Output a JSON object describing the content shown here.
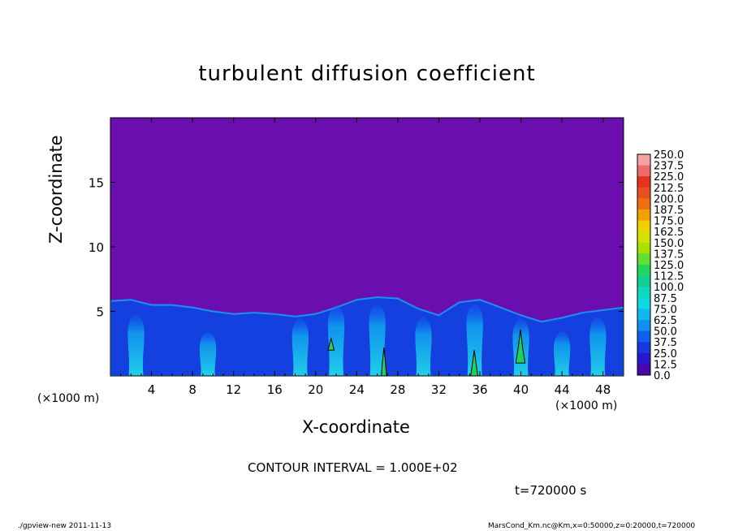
{
  "figure": {
    "title": "turbulent diffusion coefficient",
    "xlabel": "X-coordinate",
    "ylabel": "Z-coordinate",
    "x_unit_left": "(×1000 m)",
    "x_unit_right": "(×1000 m)",
    "contour_interval": "CONTOUR INTERVAL = 1.000E+02",
    "time": "t=720000 s",
    "footer_left": "./gpview-new   2011-11-13",
    "footer_right": "MarsCond_Km.nc@Km,x=0:50000,z=0:20000,t=720000"
  },
  "chart_data": {
    "type": "heatmap",
    "title": "turbulent diffusion coefficient",
    "xlabel": "X-coordinate",
    "ylabel": "Z-coordinate",
    "xlim": [
      0,
      50
    ],
    "ylim": [
      0,
      20
    ],
    "x_ticks": [
      4,
      8,
      12,
      16,
      20,
      24,
      28,
      32,
      36,
      40,
      44,
      48
    ],
    "y_ticks": [
      5,
      10,
      15
    ],
    "background_value": 0.0,
    "colorbar": {
      "labels": [
        "250.0",
        "237.5",
        "225.0",
        "212.5",
        "200.0",
        "187.5",
        "175.0",
        "162.5",
        "150.0",
        "137.5",
        "125.0",
        "112.5",
        "100.0",
        "87.5",
        "75.0",
        "62.5",
        "50.0",
        "37.5",
        "25.0",
        "12.5",
        "0.0"
      ],
      "colors": [
        "#f7a2a2",
        "#f26b6b",
        "#e8321e",
        "#e85020",
        "#f07010",
        "#f0a000",
        "#f0d000",
        "#d8e000",
        "#a8e000",
        "#60e030",
        "#20d860",
        "#10d090",
        "#10d8c0",
        "#10d8e0",
        "#10b8f0",
        "#1090f0",
        "#1060f0",
        "#1838e0",
        "#2818d0",
        "#4808b0",
        "#6a0eb0"
      ]
    },
    "mixed_layer_top": [
      [
        0,
        5.8
      ],
      [
        2,
        5.9
      ],
      [
        4,
        5.5
      ],
      [
        6,
        5.5
      ],
      [
        8,
        5.3
      ],
      [
        10,
        5.0
      ],
      [
        12,
        4.8
      ],
      [
        14,
        4.9
      ],
      [
        16,
        4.8
      ],
      [
        18,
        4.6
      ],
      [
        20,
        4.8
      ],
      [
        22,
        5.3
      ],
      [
        24,
        5.9
      ],
      [
        26,
        6.1
      ],
      [
        28,
        6.0
      ],
      [
        30,
        5.2
      ],
      [
        32,
        4.7
      ],
      [
        34,
        5.7
      ],
      [
        36,
        5.9
      ],
      [
        38,
        5.3
      ],
      [
        40,
        4.7
      ],
      [
        42,
        4.2
      ],
      [
        44,
        4.5
      ],
      [
        46,
        4.9
      ],
      [
        48,
        5.1
      ],
      [
        50,
        5.3
      ]
    ],
    "plumes": [
      {
        "x": 2.5,
        "top": 4.8
      },
      {
        "x": 9.5,
        "top": 3.5
      },
      {
        "x": 18.5,
        "top": 4.5
      },
      {
        "x": 22,
        "top": 5.5
      },
      {
        "x": 26,
        "top": 5.6
      },
      {
        "x": 30.5,
        "top": 4.6
      },
      {
        "x": 35.5,
        "top": 5.6
      },
      {
        "x": 40,
        "top": 4.5
      },
      {
        "x": 44,
        "top": 3.5
      },
      {
        "x": 47.5,
        "top": 4.6
      }
    ],
    "contour_100": [
      {
        "x": [
          21.2,
          21.8
        ],
        "z": [
          2.0,
          2.9
        ]
      },
      {
        "x": [
          26.4,
          26.9
        ],
        "z": [
          0,
          2.2
        ]
      },
      {
        "x": [
          35.1,
          35.8
        ],
        "z": [
          0,
          2.0
        ]
      },
      {
        "x": [
          39.5,
          40.4
        ],
        "z": [
          1.0,
          3.6
        ]
      }
    ]
  }
}
